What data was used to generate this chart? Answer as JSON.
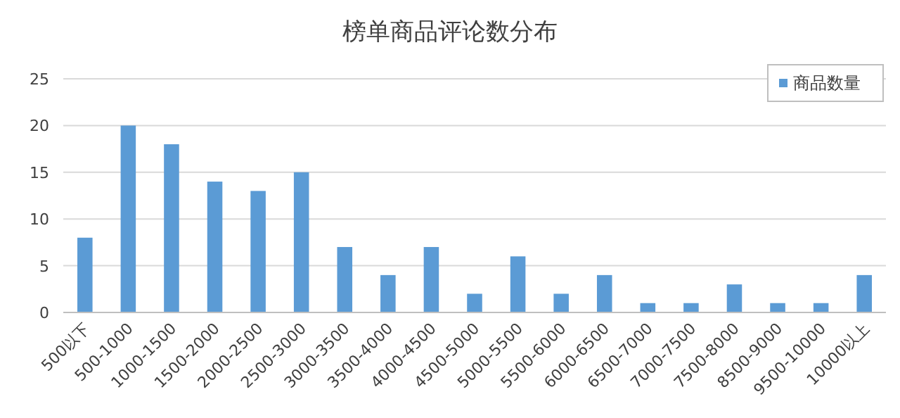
{
  "chart_data": {
    "type": "bar",
    "title": "榜单商品评论数分布",
    "categories": [
      "500以下",
      "500-1000",
      "1000-1500",
      "1500-2000",
      "2000-2500",
      "2500-3000",
      "3000-3500",
      "3500-4000",
      "4000-4500",
      "4500-5000",
      "5000-5500",
      "5500-6000",
      "6000-6500",
      "6500-7000",
      "7000-7500",
      "7500-8000",
      "8500-9000",
      "9500-10000",
      "10000以上"
    ],
    "series": [
      {
        "name": "商品数量",
        "color": "#5b9bd5",
        "values": [
          8,
          20,
          18,
          14,
          13,
          15,
          7,
          4,
          7,
          2,
          6,
          2,
          4,
          1,
          1,
          3,
          1,
          1,
          4
        ]
      }
    ],
    "ylim": [
      0,
      25
    ],
    "yticks": [
      0,
      5,
      10,
      15,
      20,
      25
    ],
    "grid": "y",
    "legend": "top right"
  }
}
